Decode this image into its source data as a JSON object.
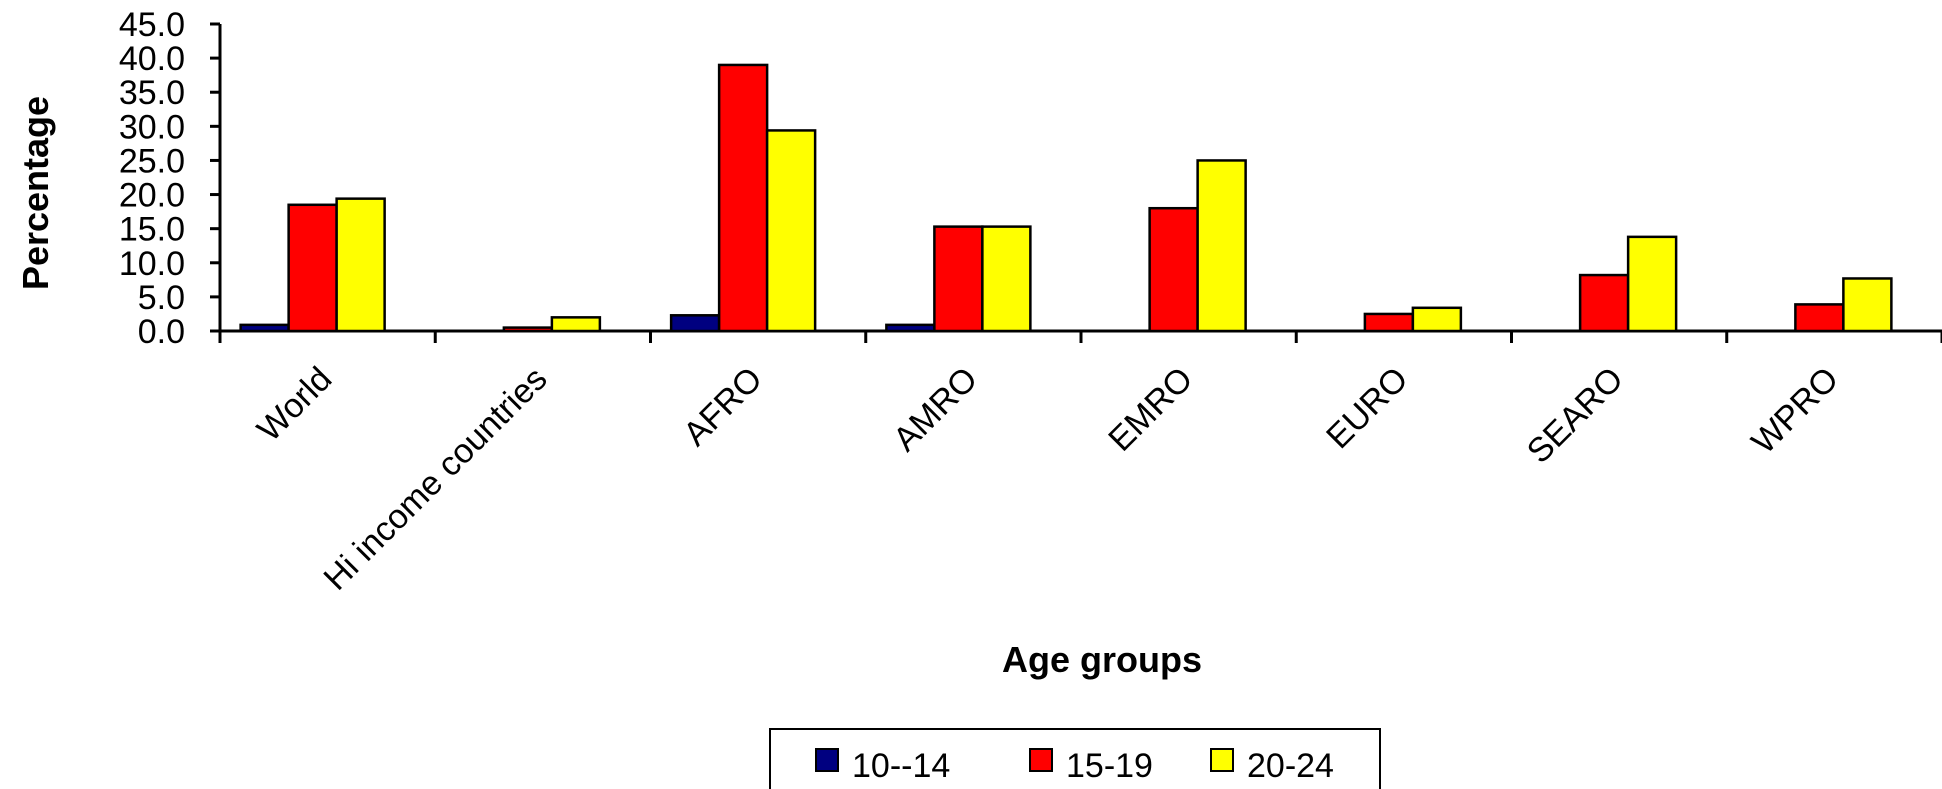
{
  "chart_data": {
    "type": "bar",
    "categories": [
      "World",
      "Hi income countries",
      "AFRO",
      "AMRO",
      "EMRO",
      "EURO",
      "SEARO",
      "WPRO"
    ],
    "series": [
      {
        "name": "10--14",
        "color": "#000080",
        "values": [
          0.9,
          0.0,
          2.3,
          0.9,
          0.0,
          0.0,
          0.0,
          0.0
        ]
      },
      {
        "name": "15-19",
        "color": "#ff0000",
        "values": [
          18.5,
          0.5,
          39.0,
          15.3,
          18.0,
          2.5,
          8.2,
          3.9
        ]
      },
      {
        "name": "20-24",
        "color": "#ffff00",
        "values": [
          19.4,
          2.0,
          29.4,
          15.3,
          25.0,
          3.4,
          13.8,
          7.7
        ]
      }
    ],
    "yticks": [
      "0.0",
      "5.0",
      "10.0",
      "15.0",
      "20.0",
      "25.0",
      "30.0",
      "35.0",
      "40.0",
      "45.0"
    ],
    "ylim": [
      0,
      45
    ],
    "xlabel": "Age groups",
    "ylabel": "Percentage",
    "grid": false,
    "legend_position": "bottom-center"
  }
}
